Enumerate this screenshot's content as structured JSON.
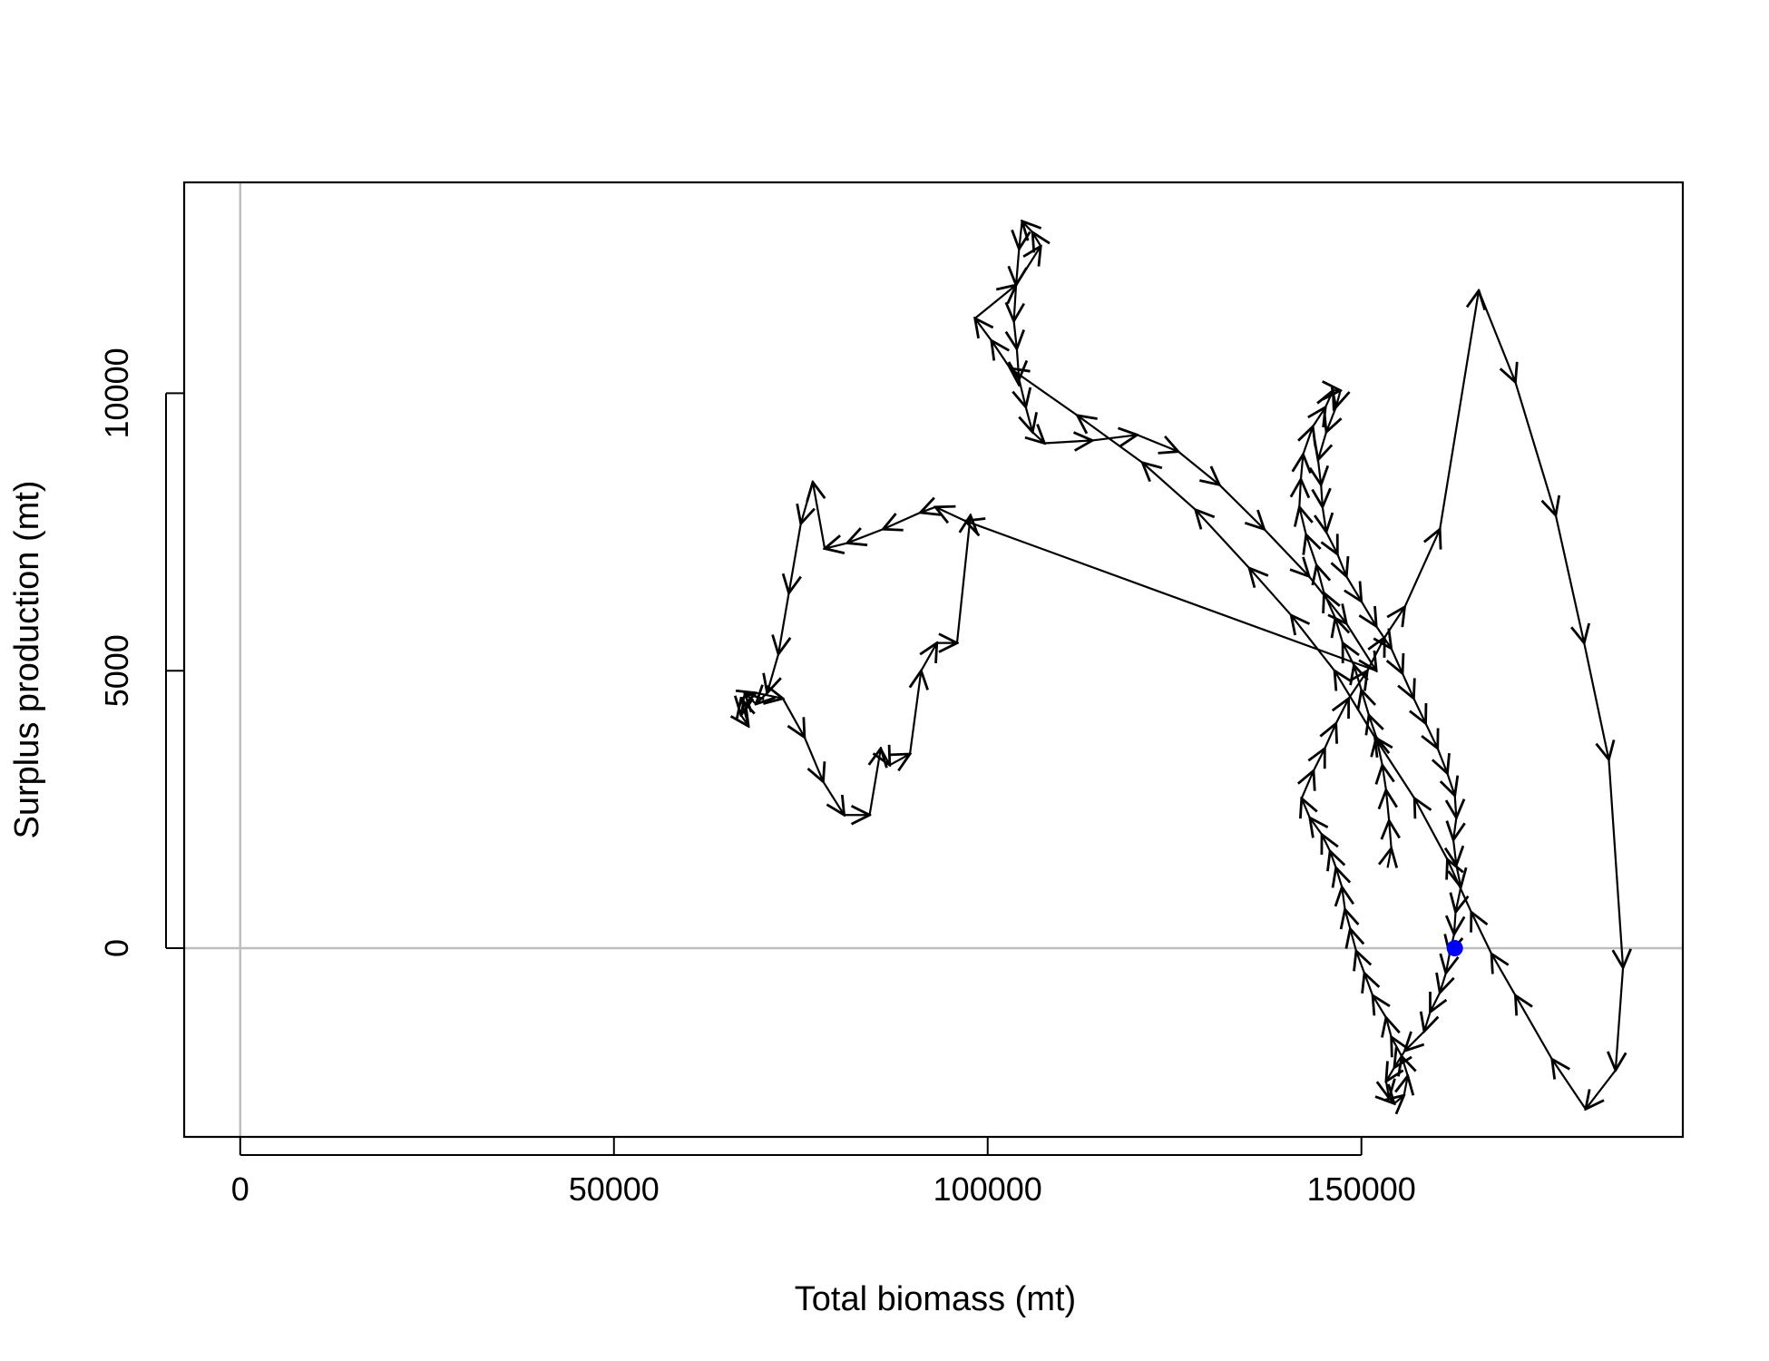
{
  "chart_data": {
    "type": "line",
    "xlabel": "Total biomass (mt)",
    "ylabel": "Surplus production (mt)",
    "xlim": [
      -7500,
      193000
    ],
    "ylim": [
      -3400,
      13800
    ],
    "x_ticks": [
      0,
      50000,
      100000,
      150000
    ],
    "y_ticks": [
      0,
      5000,
      10000
    ],
    "reference_lines": {
      "x": 0,
      "y": 0,
      "color": "#bebebe"
    },
    "path_color": "#000000",
    "end_point_color": "#0000ff",
    "grid": false,
    "legend": "none",
    "x": [
      153500,
      154000,
      153700,
      153300,
      152800,
      152000,
      151000,
      150000,
      149000,
      147500,
      146500,
      145000,
      144000,
      142600,
      141700,
      141900,
      142200,
      143500,
      145200,
      146200,
      147200,
      146600,
      145300,
      144200,
      144600,
      144800,
      145300,
      146800,
      148000,
      150000,
      152000,
      154000,
      155500,
      157000,
      158600,
      160200,
      161500,
      162500,
      162700,
      162300,
      162700,
      163300,
      162600,
      162400,
      161800,
      161300,
      160500,
      159200,
      158400,
      155800,
      154400,
      153300,
      153700,
      154400,
      155700,
      156200,
      155400,
      154000,
      153300,
      151500,
      150400,
      149300,
      148500,
      147800,
      147400,
      146600,
      145800,
      144700,
      143100,
      142000,
      143600,
      145100,
      146600,
      148300,
      150800,
      153100,
      155800,
      160500,
      165700,
      170600,
      176000,
      179800,
      183100,
      185000,
      184000,
      180000,
      175500,
      170600,
      167400,
      164700,
      161500,
      157100,
      151800,
      146400,
      140600,
      135000,
      127800,
      120700,
      112000,
      103000,
      100500,
      98300,
      103800,
      107100,
      106000,
      104600,
      104200,
      103800,
      103500,
      103900,
      104200,
      105100,
      106000,
      107600,
      114000,
      120000,
      125500,
      131000,
      137000,
      143000,
      148000,
      152000,
      97000,
      93000,
      91000,
      86000,
      81200,
      78200,
      76600,
      75000,
      73400,
      72000,
      70500,
      69000,
      67500,
      67000,
      68000,
      67000,
      69000,
      72600,
      75500,
      78000,
      80800,
      84200,
      85700,
      86900,
      89600,
      91100,
      93200,
      95900,
      97700
    ],
    "y": [
      1450,
      1800,
      2300,
      2850,
      3300,
      3800,
      4200,
      4650,
      5100,
      5500,
      5950,
      6400,
      6900,
      7450,
      7950,
      8450,
      8900,
      9400,
      9750,
      10050,
      10050,
      9750,
      9300,
      8800,
      8350,
      7950,
      7500,
      7100,
      6700,
      6250,
      5800,
      5400,
      4950,
      4500,
      4050,
      3600,
      3150,
      2750,
      2350,
      1950,
      1500,
      1100,
      650,
      250,
      -100,
      -450,
      -800,
      -1150,
      -1500,
      -1850,
      -2150,
      -2400,
      -2700,
      -2800,
      -2650,
      -2300,
      -1950,
      -1600,
      -1250,
      -850,
      -450,
      -50,
      350,
      700,
      1100,
      1450,
      1750,
      2050,
      2350,
      2700,
      3200,
      3600,
      4050,
      4500,
      5000,
      5600,
      6150,
      7550,
      11850,
      10200,
      7800,
      5500,
      3400,
      -350,
      -2200,
      -2900,
      -2000,
      -850,
      -100,
      650,
      1600,
      2700,
      3800,
      5000,
      6000,
      6850,
      7900,
      8750,
      9600,
      10450,
      10950,
      11350,
      11950,
      12650,
      12900,
      13100,
      12600,
      11950,
      11300,
      10800,
      10250,
      9750,
      9300,
      9100,
      9150,
      9250,
      8950,
      8350,
      7550,
      6700,
      5850,
      5000,
      7700,
      7950,
      7850,
      7550,
      7300,
      7200,
      8400,
      7650,
      6400,
      5300,
      4600,
      4400,
      4600,
      4200,
      4000,
      4500,
      4600,
      4500,
      3800,
      3000,
      2400,
      2400,
      3600,
      3300,
      3500,
      5000,
      5500,
      5500,
      7800
    ]
  }
}
